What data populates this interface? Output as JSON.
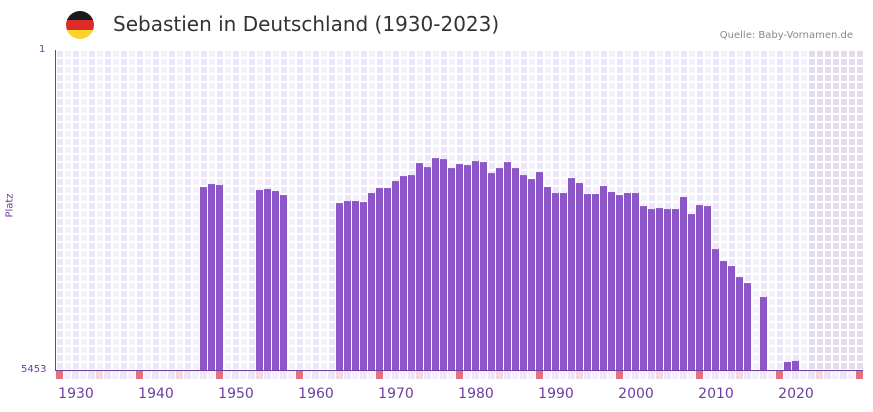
{
  "header": {
    "title": "Sebastien in Deutschland (1930-2023)",
    "source": "Quelle: Baby-Vornamen.de",
    "flag_colors": [
      "#1a1a1a",
      "#dd2b2b",
      "#fcd22d"
    ]
  },
  "axes": {
    "y_top_label": "1",
    "y_bottom_label": "5453",
    "y_title": "Platz",
    "x_labels": [
      "1930",
      "1940",
      "1950",
      "1960",
      "1970",
      "1980",
      "1990",
      "2000",
      "2010",
      "2020"
    ]
  },
  "colors": {
    "bar": "#8c56c8",
    "grid_light": "#f4f0fc",
    "grid_dark": "#ece6f8",
    "future_shade": "#e2dcec",
    "axis": "#6b3fa0",
    "marker_strong": "#e5727a",
    "marker_weak": "#f7d7df"
  },
  "chart_data": {
    "type": "bar",
    "title": "Sebastien in Deutschland (1930-2023)",
    "xlabel": "",
    "ylabel": "Platz",
    "ylim": [
      5453,
      1
    ],
    "y_inverted": true,
    "x_range": [
      1928,
      2028
    ],
    "shaded_from": 2022,
    "categories": [
      1946,
      1947,
      1948,
      1953,
      1954,
      1955,
      1956,
      1963,
      1964,
      1965,
      1966,
      1967,
      1968,
      1969,
      1970,
      1971,
      1972,
      1973,
      1974,
      1975,
      1976,
      1977,
      1978,
      1979,
      1980,
      1981,
      1982,
      1983,
      1984,
      1985,
      1986,
      1987,
      1988,
      1989,
      1990,
      1991,
      1992,
      1993,
      1994,
      1995,
      1996,
      1997,
      1998,
      1999,
      2000,
      2001,
      2002,
      2003,
      2004,
      2005,
      2006,
      2007,
      2008,
      2009,
      2010,
      2011,
      2012,
      2013,
      2014,
      2016,
      2019,
      2020
    ],
    "values": [
      2336,
      2285,
      2302,
      2387,
      2370,
      2404,
      2472,
      2609,
      2575,
      2575,
      2592,
      2438,
      2353,
      2353,
      2234,
      2149,
      2132,
      1928,
      1996,
      1843,
      1860,
      2013,
      1945,
      1962,
      1894,
      1911,
      2098,
      2013,
      1911,
      2013,
      2132,
      2200,
      2081,
      2336,
      2438,
      2438,
      2183,
      2268,
      2455,
      2455,
      2319,
      2421,
      2472,
      2438,
      2438,
      2660,
      2711,
      2694,
      2711,
      2711,
      2506,
      2796,
      2643,
      2660,
      3393,
      3597,
      3682,
      3870,
      3972,
      4210,
      5316,
      5299
    ]
  },
  "sources": "Quelle: Baby-Vornamen.de"
}
